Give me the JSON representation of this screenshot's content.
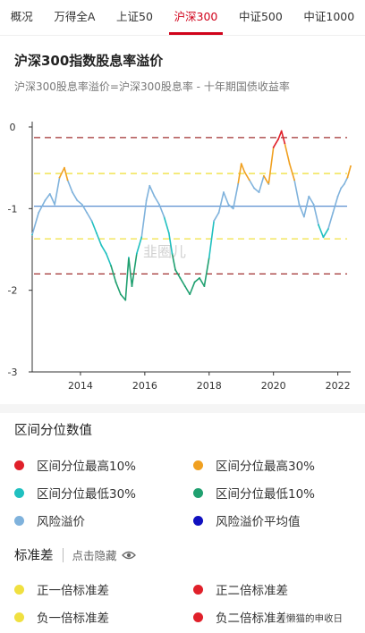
{
  "tabs": [
    {
      "label": "概况",
      "active": false
    },
    {
      "label": "万得全A",
      "active": false
    },
    {
      "label": "上证50",
      "active": false
    },
    {
      "label": "沪深300",
      "active": true
    },
    {
      "label": "中证500",
      "active": false
    },
    {
      "label": "中证1000",
      "active": false
    }
  ],
  "header": {
    "title": "沪深300指数股息率溢价",
    "subtitle": "沪深300股息率溢价=沪深300股息率 - 十年期国债收益率"
  },
  "chart_data": {
    "type": "line",
    "title": "沪深300指数股息率溢价",
    "subtitle": "沪深300股息率溢价=沪深300股息率 - 十年期国债收益率",
    "xlabel": "",
    "ylabel": "",
    "ylim": [
      -3,
      0
    ],
    "xlim": [
      2012.5,
      2022.4
    ],
    "yticks": [
      "0",
      "-1",
      "-2",
      "-3"
    ],
    "xticks": [
      "2014",
      "2016",
      "2018",
      "2020",
      "2022"
    ],
    "grid": false,
    "colors": {
      "series": "#7fb2dc",
      "top10": "#e0202a",
      "top30": "#f0a020",
      "bottom30": "#20c0c0",
      "bottom10": "#20a070",
      "mean": "#5a8fd0",
      "std1": "#f0e040",
      "std2": "#a03030"
    },
    "reference_lines": {
      "mean": -0.97,
      "plus_1_std": -0.57,
      "minus_1_std": -1.37,
      "plus_2_std": -0.13,
      "minus_2_std": -1.8
    },
    "percentile_thresholds": {
      "top10": -0.3,
      "top30": -0.65,
      "bottom30": -1.2,
      "bottom10": -1.65
    },
    "series": [
      {
        "name": "风险溢价",
        "x": [
          2012.5,
          2012.7,
          2012.9,
          2013.05,
          2013.2,
          2013.35,
          2013.5,
          2013.6,
          2013.75,
          2013.9,
          2014.05,
          2014.2,
          2014.35,
          2014.5,
          2014.65,
          2014.8,
          2014.95,
          2015.1,
          2015.25,
          2015.4,
          2015.5,
          2015.6,
          2015.75,
          2015.9,
          2016.05,
          2016.15,
          2016.3,
          2016.45,
          2016.6,
          2016.75,
          2016.85,
          2016.95,
          2017.1,
          2017.25,
          2017.4,
          2017.55,
          2017.7,
          2017.85,
          2018.0,
          2018.15,
          2018.3,
          2018.45,
          2018.6,
          2018.75,
          2018.9,
          2019.0,
          2019.1,
          2019.25,
          2019.4,
          2019.55,
          2019.7,
          2019.85,
          2020.0,
          2020.15,
          2020.25,
          2020.35,
          2020.5,
          2020.65,
          2020.8,
          2020.95,
          2021.1,
          2021.25,
          2021.4,
          2021.55,
          2021.7,
          2021.85,
          2022.0,
          2022.1,
          2022.2,
          2022.3,
          2022.4
        ],
        "values": [
          -1.32,
          -1.05,
          -0.9,
          -0.82,
          -0.95,
          -0.62,
          -0.5,
          -0.65,
          -0.8,
          -0.9,
          -0.95,
          -1.05,
          -1.15,
          -1.3,
          -1.45,
          -1.55,
          -1.7,
          -1.9,
          -2.05,
          -2.12,
          -1.6,
          -1.95,
          -1.55,
          -1.35,
          -0.9,
          -0.72,
          -0.85,
          -0.95,
          -1.1,
          -1.3,
          -1.55,
          -1.75,
          -1.85,
          -1.95,
          -2.05,
          -1.9,
          -1.85,
          -1.95,
          -1.6,
          -1.15,
          -1.05,
          -0.8,
          -0.95,
          -1.0,
          -0.7,
          -0.45,
          -0.55,
          -0.65,
          -0.75,
          -0.8,
          -0.6,
          -0.7,
          -0.25,
          -0.15,
          -0.05,
          -0.2,
          -0.45,
          -0.65,
          -0.95,
          -1.1,
          -0.85,
          -0.95,
          -1.2,
          -1.35,
          -1.25,
          -1.05,
          -0.85,
          -0.75,
          -0.7,
          -0.62,
          -0.48
        ]
      }
    ]
  },
  "watermark": {
    "chart": "韭圈儿",
    "corner": "懒猫的申收日"
  },
  "legend": {
    "title": "区间分位数值",
    "items": [
      {
        "label": "区间分位最高10%",
        "color": "#e0202a"
      },
      {
        "label": "区间分位最高30%",
        "color": "#f0a020"
      },
      {
        "label": "区间分位最低30%",
        "color": "#20c0c0"
      },
      {
        "label": "区间分位最低10%",
        "color": "#20a070"
      },
      {
        "label": "风险溢价",
        "color": "#7fb2dc"
      },
      {
        "label": "风险溢价平均值",
        "color": "#1010c0"
      }
    ]
  },
  "std": {
    "title": "标准差",
    "toggle_label": "点击隐藏",
    "toggle_icon": "eye-icon",
    "items": [
      {
        "label": "正一倍标准差",
        "color": "#f0e040"
      },
      {
        "label": "正二倍标准差",
        "color": "#e0202a"
      },
      {
        "label": "负一倍标准差",
        "color": "#f0e040"
      },
      {
        "label": "负二倍标准差",
        "color": "#e0202a"
      }
    ]
  }
}
